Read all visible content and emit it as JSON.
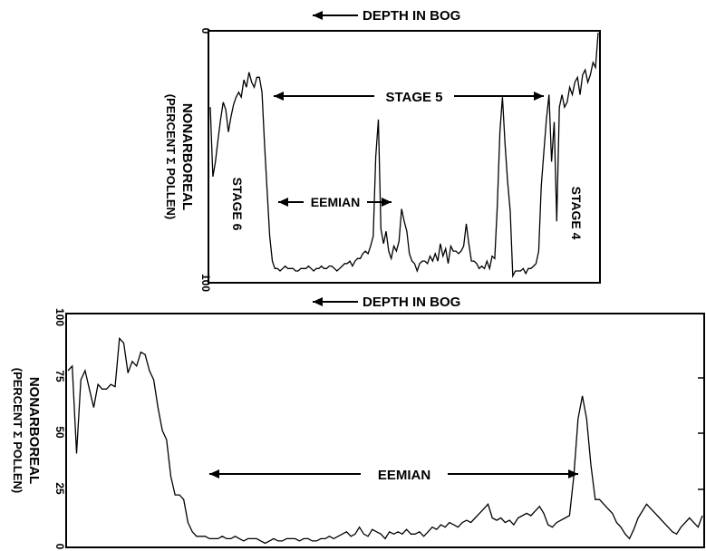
{
  "chart_data": [
    {
      "type": "line",
      "axis_label_top": "DEPTH IN BOG",
      "axis_label_bottom": "DEPTH IN BOG",
      "ylabel": "NONARBOREAL",
      "ylabel_sub": "(PERCENT Σ POLLEN)",
      "ylim": [
        0,
        100
      ],
      "y_inverted": true,
      "yticks": [
        "0",
        "100"
      ],
      "grid": false,
      "annotations": {
        "stage5": "STAGE 5",
        "eemian": "EEMIAN",
        "stage6": "STAGE 6",
        "stage4": "STAGE 4"
      },
      "series": [
        {
          "x": [
            0,
            1,
            2,
            3,
            4,
            5,
            6,
            7,
            8,
            9,
            10,
            11,
            12,
            13,
            14,
            15,
            16,
            17,
            18,
            19,
            20,
            21,
            22,
            23,
            24,
            25,
            26,
            27,
            28,
            29,
            30,
            31,
            32,
            33,
            34,
            35,
            36,
            37,
            38,
            39,
            40,
            41,
            42,
            43,
            44,
            45,
            46,
            47,
            48,
            49,
            50,
            51,
            52,
            53,
            54,
            55,
            56,
            57,
            58,
            59,
            60,
            61,
            62,
            63,
            64,
            65,
            66,
            67,
            68,
            69,
            70,
            71,
            72,
            73,
            74,
            75,
            76,
            77,
            78,
            79,
            80,
            81,
            82,
            83,
            84,
            85,
            86,
            87,
            88,
            89,
            90,
            91,
            92,
            93,
            94,
            95,
            96,
            97,
            98,
            99,
            100,
            101,
            102,
            103,
            104,
            105,
            106,
            107,
            108,
            109,
            110,
            111,
            112,
            113,
            114,
            115,
            116,
            117,
            118,
            119,
            120,
            121,
            122,
            123,
            124,
            125,
            126,
            127,
            128,
            129,
            130,
            131,
            132,
            133,
            134,
            135,
            136,
            137,
            138,
            139,
            140,
            141,
            142,
            143,
            144,
            145,
            146,
            147,
            148,
            149,
            150
          ],
          "values": [
            30,
            58,
            52,
            43,
            35,
            28,
            31,
            40,
            34,
            29,
            26,
            24,
            26,
            19,
            22,
            16,
            20,
            22,
            18,
            18,
            24,
            45,
            64,
            82,
            92,
            95,
            95,
            96,
            95,
            94,
            95,
            95,
            95,
            96,
            96,
            95,
            95,
            95,
            94,
            95,
            96,
            95,
            95,
            94,
            95,
            95,
            94,
            94,
            95,
            96,
            95,
            94,
            93,
            93,
            92,
            94,
            92,
            91,
            91,
            89,
            88,
            89,
            86,
            82,
            50,
            35,
            79,
            85,
            80,
            88,
            91,
            86,
            88,
            84,
            71,
            76,
            80,
            89,
            92,
            93,
            96,
            93,
            92,
            92,
            93,
            90,
            92,
            89,
            92,
            85,
            90,
            87,
            93,
            86,
            88,
            88,
            89,
            88,
            86,
            77,
            85,
            92,
            92,
            93,
            95,
            94,
            95,
            92,
            95,
            90,
            91,
            70,
            40,
            26,
            45,
            60,
            72,
            98,
            96,
            96,
            96,
            95,
            97,
            95,
            95,
            94,
            93,
            88,
            62,
            48,
            35,
            25,
            52,
            36,
            76,
            30,
            25,
            30,
            28,
            22,
            25,
            20,
            18,
            25,
            17,
            15,
            20,
            17,
            12,
            14,
            0
          ]
        }
      ]
    },
    {
      "type": "line",
      "ylabel": "NONARBOREAL",
      "ylabel_sub": "(PERCENT Σ POLLEN)",
      "ylim": [
        0,
        100
      ],
      "yticks": [
        "0",
        "25",
        "50",
        "75",
        "100"
      ],
      "grid": false,
      "annotations": {
        "eemian": "EEMIAN"
      },
      "series": [
        {
          "x": [
            0,
            1,
            2,
            3,
            4,
            5,
            6,
            7,
            8,
            9,
            10,
            11,
            12,
            13,
            14,
            15,
            16,
            17,
            18,
            19,
            20,
            21,
            22,
            23,
            24,
            25,
            26,
            27,
            28,
            29,
            30,
            31,
            32,
            33,
            34,
            35,
            36,
            37,
            38,
            39,
            40,
            41,
            42,
            43,
            44,
            45,
            46,
            47,
            48,
            49,
            50,
            51,
            52,
            53,
            54,
            55,
            56,
            57,
            58,
            59,
            60,
            61,
            62,
            63,
            64,
            65,
            66,
            67,
            68,
            69,
            70,
            71,
            72,
            73,
            74,
            75,
            76,
            77,
            78,
            79,
            80,
            81,
            82,
            83,
            84,
            85,
            86,
            87,
            88,
            89,
            90,
            91,
            92,
            93,
            94,
            95,
            96,
            97,
            98,
            99,
            100,
            101,
            102,
            103,
            104,
            105,
            106,
            107,
            108,
            109,
            110,
            111,
            112,
            113,
            114,
            115,
            116,
            117,
            118,
            119,
            120,
            121,
            122,
            123,
            124,
            125,
            126,
            127,
            128,
            129,
            130,
            131,
            132,
            133,
            134,
            135,
            136,
            137,
            138,
            139,
            140,
            141,
            142,
            143,
            144,
            145,
            146,
            147,
            148
          ],
          "values": [
            76,
            78,
            40,
            72,
            76,
            68,
            60,
            70,
            68,
            68,
            70,
            69,
            90,
            88,
            75,
            80,
            78,
            84,
            83,
            76,
            72,
            60,
            50,
            46,
            30,
            22,
            22,
            20,
            10,
            6,
            4,
            4,
            4,
            3,
            3,
            3,
            4,
            3,
            3,
            4,
            3,
            2,
            3,
            3,
            3,
            2,
            1,
            2,
            3,
            2,
            2,
            3,
            3,
            3,
            2,
            3,
            3,
            2,
            2,
            3,
            3,
            4,
            3,
            4,
            5,
            6,
            4,
            5,
            8,
            5,
            4,
            7,
            6,
            5,
            3,
            6,
            5,
            6,
            5,
            7,
            5,
            5,
            6,
            4,
            6,
            8,
            7,
            9,
            8,
            10,
            9,
            8,
            10,
            11,
            10,
            12,
            14,
            16,
            18,
            12,
            11,
            12,
            10,
            11,
            9,
            12,
            13,
            14,
            13,
            15,
            17,
            14,
            9,
            8,
            10,
            11,
            12,
            13,
            30,
            55,
            65,
            55,
            35,
            20,
            20,
            18,
            16,
            14,
            10,
            8,
            5,
            3,
            7,
            12,
            15,
            18,
            16,
            14,
            12,
            10,
            8,
            6,
            5,
            8,
            10,
            12,
            10,
            8,
            13
          ]
        }
      ]
    }
  ]
}
